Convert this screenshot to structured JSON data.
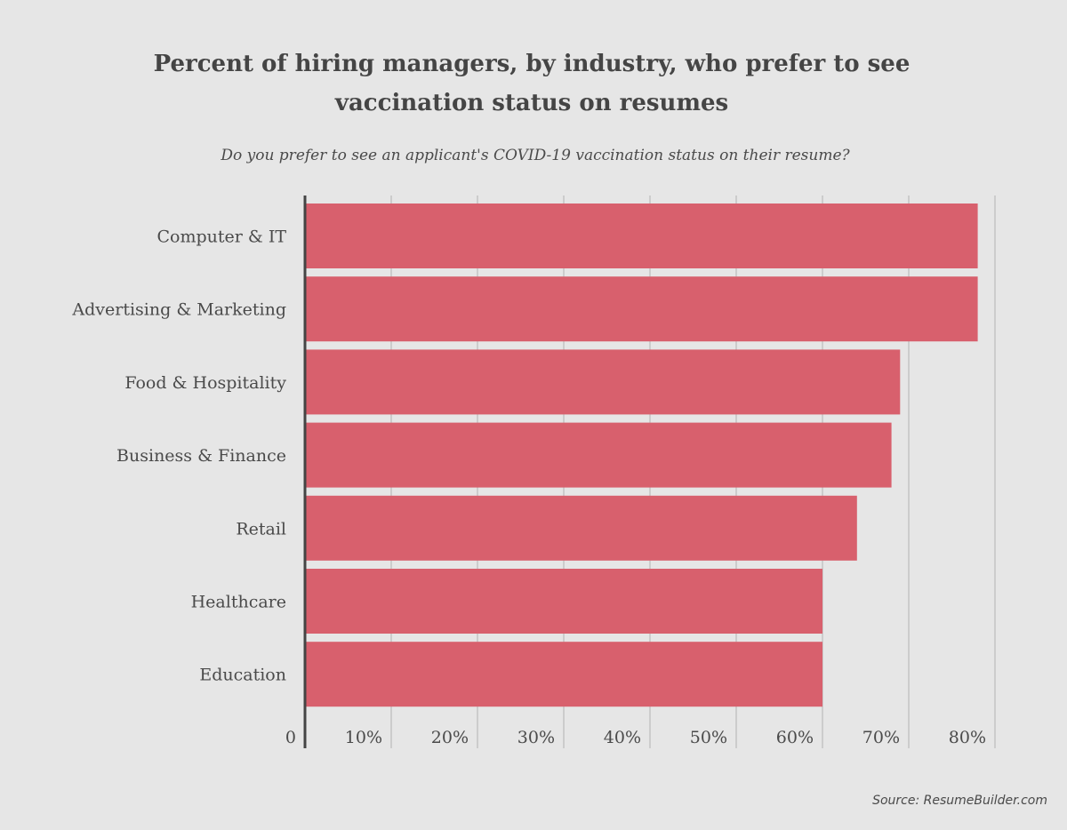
{
  "title": "Percent of hiring managers, by industry, who prefer to see vaccination status on resumes",
  "title_lines": [
    "Percent of hiring managers, by industry, who prefer to see",
    "vaccination status on resumes"
  ],
  "subtitle": "Do you prefer to see an applicant's COVID-19 vaccination status on their resume?",
  "source": "Source: ResumeBuilder.com",
  "colors": {
    "background": "#e6e6e6",
    "bar": "#d8606d",
    "axis": "#444444",
    "grid": "#c4c4c4"
  },
  "chart_data": {
    "type": "bar",
    "orientation": "horizontal",
    "categories": [
      "Computer & IT",
      "Advertising & Marketing",
      "Food & Hospitality",
      "Business & Finance",
      "Retail",
      "Healthcare",
      "Education"
    ],
    "values": [
      78,
      78,
      69,
      68,
      64,
      60,
      60
    ],
    "xlim": [
      0,
      80
    ],
    "xticks": [
      0,
      10,
      20,
      30,
      40,
      50,
      60,
      70,
      80
    ],
    "xtick_labels": [
      "0",
      "10%",
      "20%",
      "30%",
      "40%",
      "50%",
      "60%",
      "70%",
      "80%"
    ],
    "grid": true,
    "xlabel": "",
    "ylabel": ""
  }
}
